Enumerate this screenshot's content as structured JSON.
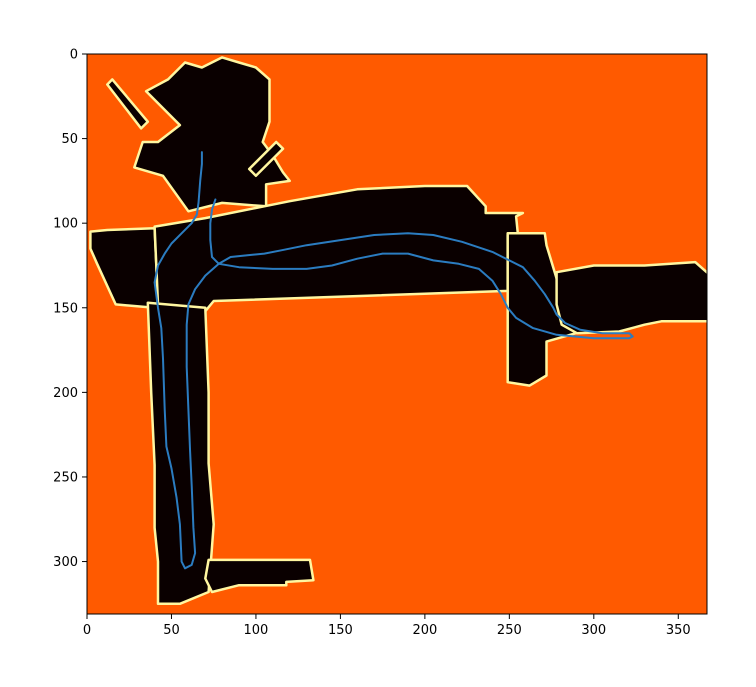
{
  "chart_data": {
    "type": "heatmap",
    "title": "",
    "xlabel": "",
    "ylabel": "",
    "xlim": [
      0,
      367
    ],
    "ylim": [
      331,
      0
    ],
    "y_axis_inverted": true,
    "grid": false,
    "legend": "none",
    "x_ticks": [
      0,
      50,
      100,
      150,
      200,
      250,
      300,
      350
    ],
    "y_ticks": [
      0,
      50,
      100,
      150,
      200,
      250,
      300
    ],
    "colors": {
      "unknown": "#ff5a00",
      "free": "#0a0000",
      "edge": "#fff6a0",
      "path": "#2b7cc0"
    },
    "free_space_regions": [
      {
        "name": "upper-cluster",
        "polygon": [
          [
            42,
            52
          ],
          [
            55,
            42
          ],
          [
            35,
            22
          ],
          [
            48,
            15
          ],
          [
            58,
            5
          ],
          [
            68,
            8
          ],
          [
            80,
            2
          ],
          [
            90,
            5
          ],
          [
            100,
            8
          ],
          [
            108,
            15
          ],
          [
            108,
            40
          ],
          [
            104,
            52
          ],
          [
            110,
            60
          ],
          [
            116,
            70
          ],
          [
            120,
            75
          ],
          [
            106,
            77
          ],
          [
            106,
            90
          ],
          [
            80,
            88
          ],
          [
            60,
            93
          ],
          [
            45,
            72
          ],
          [
            28,
            67
          ],
          [
            33,
            52
          ]
        ]
      },
      {
        "name": "top-spike-left",
        "polygon": [
          [
            12,
            18
          ],
          [
            15,
            15
          ],
          [
            36,
            40
          ],
          [
            32,
            44
          ]
        ]
      },
      {
        "name": "top-spike-right",
        "polygon": [
          [
            96,
            68
          ],
          [
            112,
            52
          ],
          [
            116,
            56
          ],
          [
            100,
            72
          ]
        ]
      },
      {
        "name": "left-wing",
        "polygon": [
          [
            2,
            105
          ],
          [
            12,
            104
          ],
          [
            40,
            103
          ],
          [
            42,
            146
          ],
          [
            40,
            150
          ],
          [
            17,
            148
          ],
          [
            6,
            124
          ],
          [
            2,
            115
          ]
        ]
      },
      {
        "name": "horizontal-corridor",
        "polygon": [
          [
            40,
            102
          ],
          [
            70,
            97
          ],
          [
            120,
            87
          ],
          [
            160,
            80
          ],
          [
            200,
            78
          ],
          [
            225,
            78
          ],
          [
            236,
            90
          ],
          [
            236,
            94
          ],
          [
            258,
            94
          ],
          [
            254,
            96
          ],
          [
            255,
            106
          ],
          [
            249,
            107
          ],
          [
            249,
            140
          ],
          [
            75,
            146
          ],
          [
            70,
            152
          ],
          [
            42,
            148
          ]
        ]
      },
      {
        "name": "vertical-corridor",
        "polygon": [
          [
            36,
            147
          ],
          [
            70,
            150
          ],
          [
            72,
            200
          ],
          [
            72,
            242
          ],
          [
            75,
            278
          ],
          [
            72,
            318
          ],
          [
            55,
            325
          ],
          [
            42,
            325
          ],
          [
            42,
            300
          ],
          [
            40,
            280
          ],
          [
            40,
            243
          ],
          [
            38,
            200
          ]
        ]
      },
      {
        "name": "lower-arm",
        "polygon": [
          [
            72,
            299
          ],
          [
            132,
            299
          ],
          [
            134,
            311
          ],
          [
            118,
            312
          ],
          [
            118,
            314
          ],
          [
            90,
            314
          ],
          [
            74,
            318
          ],
          [
            70,
            310
          ]
        ]
      },
      {
        "name": "right-lower-room",
        "polygon": [
          [
            249,
            106
          ],
          [
            271,
            106
          ],
          [
            272,
            113
          ],
          [
            279,
            136
          ],
          [
            290,
            136
          ],
          [
            290,
            160
          ],
          [
            300,
            162
          ],
          [
            272,
            170
          ],
          [
            272,
            190
          ],
          [
            262,
            196
          ],
          [
            249,
            194
          ],
          [
            249,
            140
          ]
        ]
      },
      {
        "name": "right-wing",
        "polygon": [
          [
            278,
            129
          ],
          [
            300,
            125
          ],
          [
            330,
            125
          ],
          [
            360,
            123
          ],
          [
            368,
            130
          ],
          [
            368,
            158
          ],
          [
            340,
            158
          ],
          [
            330,
            160
          ],
          [
            315,
            164
          ],
          [
            290,
            165
          ],
          [
            281,
            160
          ],
          [
            278,
            148
          ]
        ]
      }
    ],
    "trajectory": [
      [
        68,
        58
      ],
      [
        68,
        65
      ],
      [
        67,
        75
      ],
      [
        66,
        88
      ],
      [
        65,
        95
      ],
      [
        62,
        100
      ],
      [
        56,
        106
      ],
      [
        50,
        112
      ],
      [
        46,
        118
      ],
      [
        42,
        125
      ],
      [
        40,
        135
      ],
      [
        42,
        150
      ],
      [
        44,
        162
      ],
      [
        45,
        180
      ],
      [
        46,
        210
      ],
      [
        47,
        232
      ],
      [
        50,
        245
      ],
      [
        53,
        262
      ],
      [
        55,
        278
      ],
      [
        56,
        300
      ],
      [
        58,
        304
      ],
      [
        62,
        302
      ],
      [
        64,
        295
      ],
      [
        63,
        280
      ],
      [
        62,
        255
      ],
      [
        61,
        235
      ],
      [
        60,
        210
      ],
      [
        59,
        185
      ],
      [
        59,
        160
      ],
      [
        60,
        148
      ],
      [
        64,
        139
      ],
      [
        70,
        131
      ],
      [
        78,
        124
      ],
      [
        85,
        120
      ],
      [
        95,
        119
      ],
      [
        105,
        118
      ],
      [
        115,
        116
      ],
      [
        130,
        113
      ],
      [
        150,
        110
      ],
      [
        170,
        107
      ],
      [
        190,
        106
      ],
      [
        205,
        107
      ],
      [
        222,
        111
      ],
      [
        240,
        117
      ],
      [
        250,
        122
      ],
      [
        258,
        126
      ],
      [
        265,
        134
      ],
      [
        271,
        142
      ],
      [
        276,
        150
      ],
      [
        278,
        154
      ],
      [
        283,
        159
      ],
      [
        292,
        163
      ],
      [
        305,
        165
      ],
      [
        321,
        165
      ],
      [
        323,
        167
      ],
      [
        321,
        168
      ],
      [
        300,
        168
      ],
      [
        278,
        166
      ],
      [
        264,
        162
      ],
      [
        254,
        156
      ],
      [
        249,
        150
      ],
      [
        245,
        142
      ],
      [
        240,
        134
      ],
      [
        232,
        127
      ],
      [
        220,
        124
      ],
      [
        205,
        122
      ],
      [
        190,
        118
      ],
      [
        175,
        118
      ],
      [
        160,
        121
      ],
      [
        145,
        125
      ],
      [
        130,
        127
      ],
      [
        110,
        127
      ],
      [
        90,
        126
      ],
      [
        78,
        124
      ],
      [
        74,
        120
      ],
      [
        73,
        110
      ],
      [
        73,
        100
      ],
      [
        74,
        92
      ],
      [
        76,
        86
      ]
    ]
  }
}
